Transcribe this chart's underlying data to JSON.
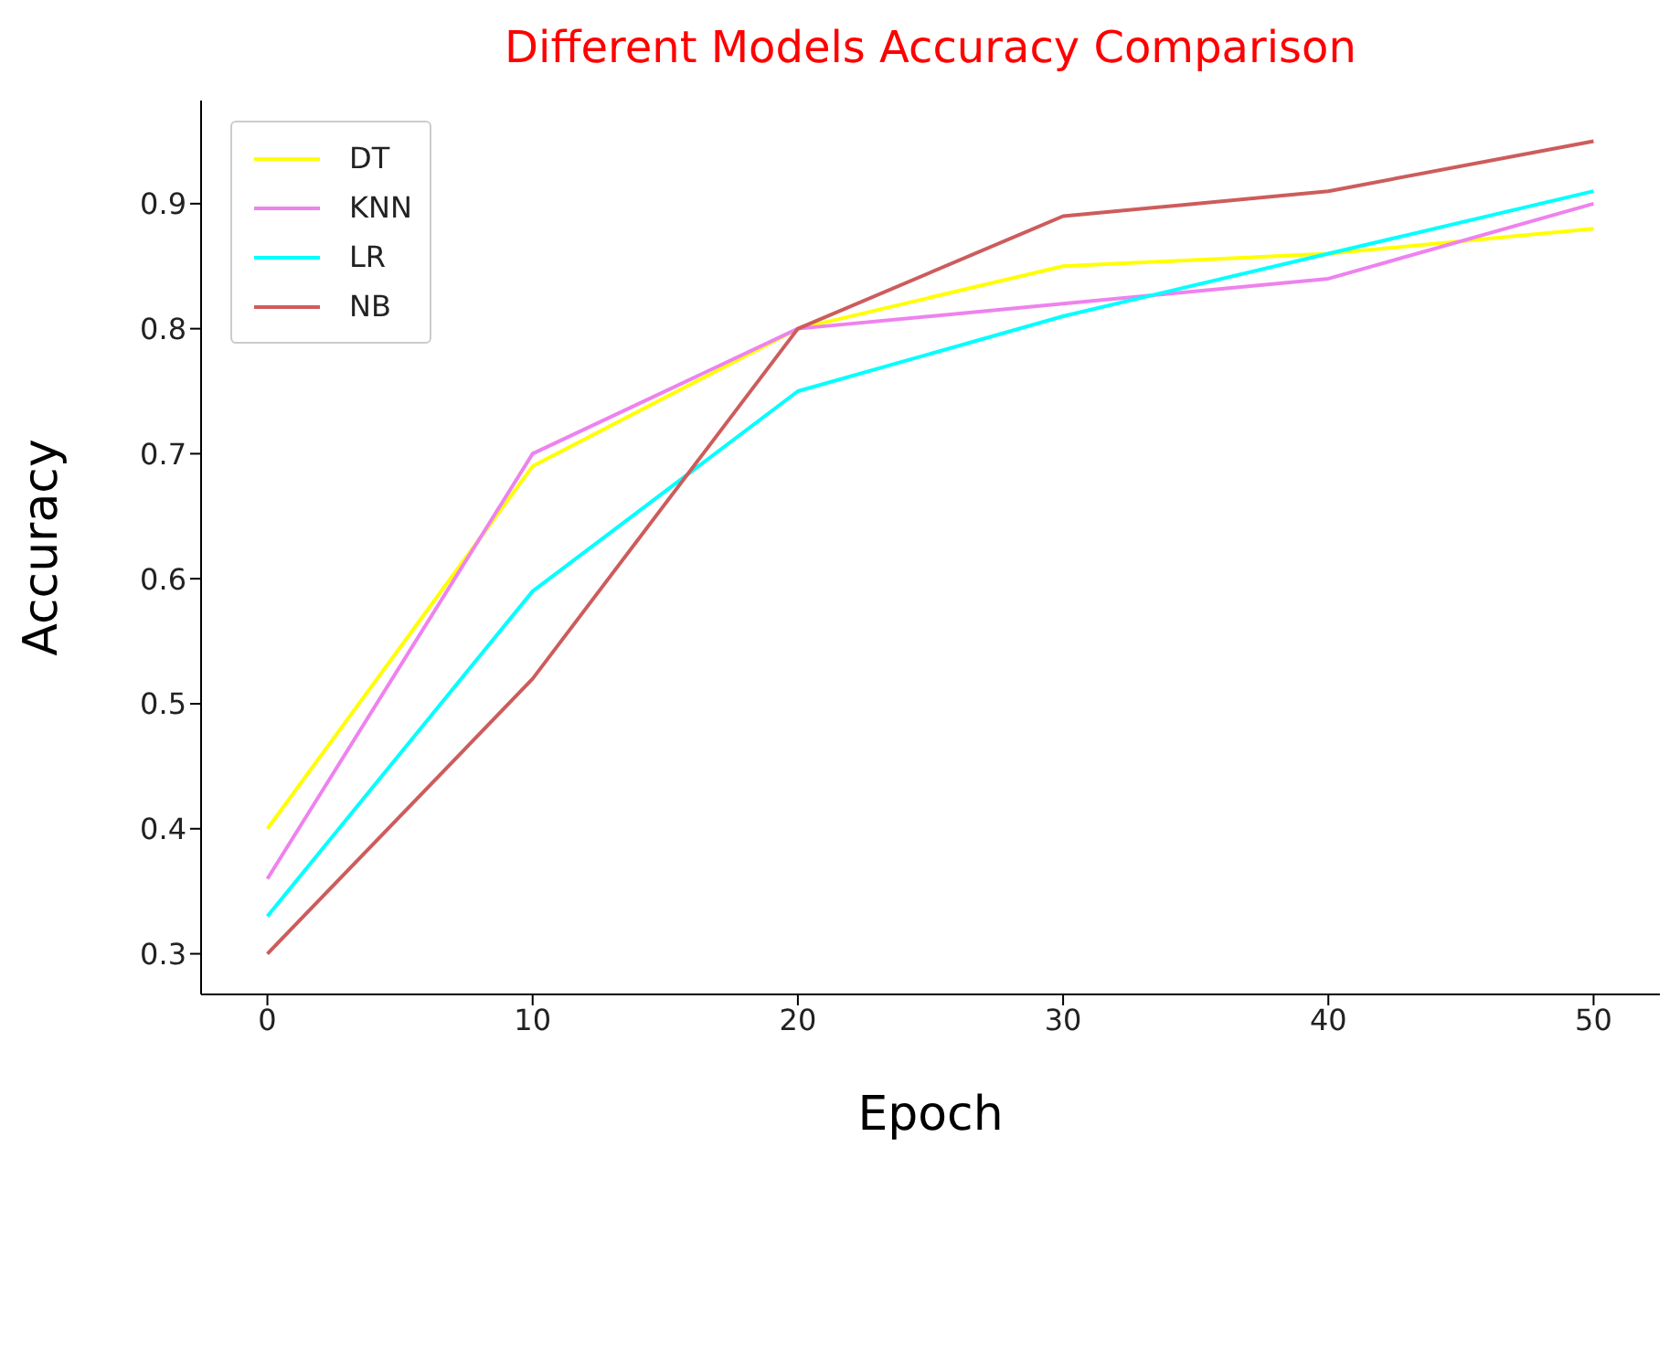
{
  "chart_data": {
    "type": "line",
    "title": "Different Models Accuracy Comparison",
    "xlabel": "Epoch",
    "ylabel": "Accuracy",
    "x": [
      0,
      10,
      20,
      30,
      40,
      50
    ],
    "series": [
      {
        "name": "DT",
        "color": "#ffff00",
        "values": [
          0.4,
          0.69,
          0.8,
          0.85,
          0.86,
          0.88
        ]
      },
      {
        "name": "KNN",
        "color": "#ee82ee",
        "values": [
          0.36,
          0.7,
          0.8,
          0.82,
          0.84,
          0.9
        ]
      },
      {
        "name": "LR",
        "color": "#00ffff",
        "values": [
          0.33,
          0.59,
          0.75,
          0.81,
          0.86,
          0.91
        ]
      },
      {
        "name": "NB",
        "color": "#cd5c5c",
        "values": [
          0.3,
          0.52,
          0.8,
          0.89,
          0.91,
          0.95
        ]
      }
    ],
    "xlim": [
      -2.5,
      52.5
    ],
    "xticks": [
      0,
      10,
      20,
      30,
      40,
      50
    ],
    "ylim": [
      0.2675,
      0.9825
    ],
    "yticks": [
      0.3,
      0.4,
      0.5,
      0.6,
      0.7,
      0.8,
      0.9
    ],
    "grid": false,
    "legend": "top left",
    "marker": "none",
    "line_style": "solid"
  }
}
